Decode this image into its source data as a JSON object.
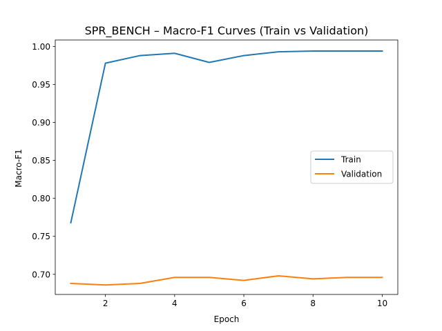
{
  "chart_data": {
    "type": "line",
    "title": "SPR_BENCH – Macro-F1 Curves (Train vs Validation)",
    "xlabel": "Epoch",
    "ylabel": "Macro-F1",
    "x": [
      1,
      2,
      3,
      4,
      5,
      6,
      7,
      8,
      9,
      10
    ],
    "xlim": [
      0.55,
      10.45
    ],
    "ylim": [
      0.6735,
      1.0085
    ],
    "xticks": [
      2,
      4,
      6,
      8,
      10
    ],
    "xtick_labels": [
      "2",
      "4",
      "6",
      "8",
      "10"
    ],
    "yticks": [
      0.7,
      0.75,
      0.8,
      0.85,
      0.9,
      0.95,
      1.0
    ],
    "ytick_labels": [
      "0.70",
      "0.75",
      "0.80",
      "0.85",
      "0.90",
      "0.95",
      "1.00"
    ],
    "grid": false,
    "legend_position": "center-right",
    "series": [
      {
        "name": "Train",
        "color": "#1f77b4",
        "values": [
          0.768,
          0.978,
          0.988,
          0.991,
          0.979,
          0.988,
          0.993,
          0.994,
          0.994,
          0.994
        ]
      },
      {
        "name": "Validation",
        "color": "#ff7f0e",
        "values": [
          0.688,
          0.686,
          0.688,
          0.696,
          0.696,
          0.692,
          0.698,
          0.694,
          0.696,
          0.696
        ]
      }
    ]
  }
}
